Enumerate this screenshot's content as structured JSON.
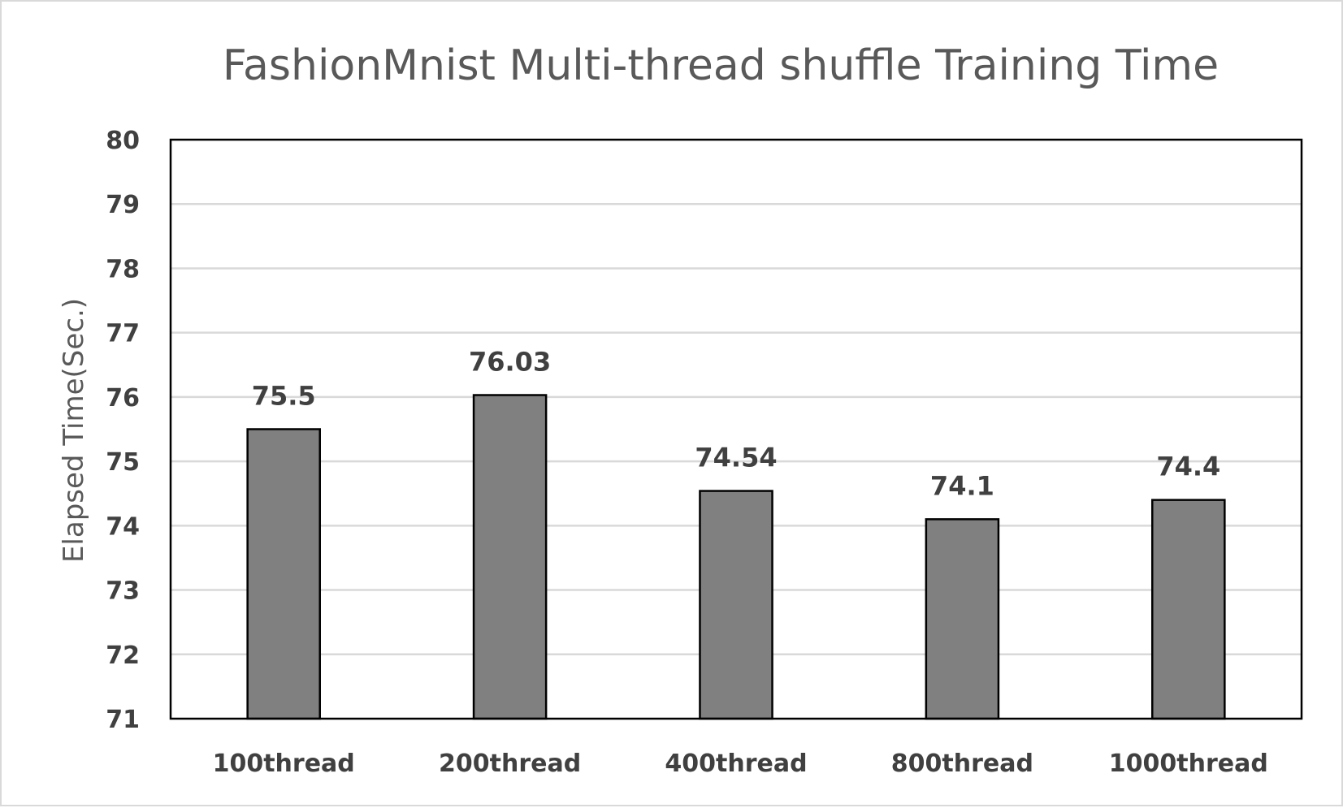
{
  "chart_data": {
    "type": "bar",
    "title": "FashionMnist Multi-thread shuffle Training Time",
    "xlabel": "",
    "ylabel": "Elapsed Time(Sec.)",
    "categories": [
      "100thread",
      "200thread",
      "400thread",
      "800thread",
      "1000thread"
    ],
    "values": [
      75.5,
      76.03,
      74.54,
      74.1,
      74.4
    ],
    "value_labels": [
      "75.5",
      "76.03",
      "74.54",
      "74.1",
      "74.4"
    ],
    "ylim": [
      71,
      80
    ],
    "yticks": [
      "71",
      "72",
      "73",
      "74",
      "75",
      "76",
      "77",
      "78",
      "79",
      "80"
    ],
    "grid": true,
    "legend": "none",
    "bar_color": "#808080"
  }
}
